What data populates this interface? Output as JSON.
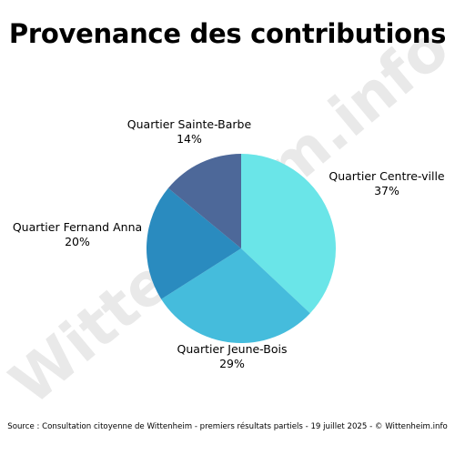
{
  "title": "Provenance des contributions",
  "watermark": "Wittenheim.info",
  "footer": "Source : Consultation citoyenne de Wittenheim - premiers résultats partiels - 19 juillet 2025 - © Wittenheim.info",
  "chart_data": {
    "type": "pie",
    "title": "Provenance des contributions",
    "slices": [
      {
        "label": "Quartier Centre-ville",
        "value": 37,
        "display": "37%",
        "color": "#6ae5e8"
      },
      {
        "label": "Quartier Jeune-Bois",
        "value": 29,
        "display": "29%",
        "color": "#45bcdc"
      },
      {
        "label": "Quartier Fernand Anna",
        "value": 20,
        "display": "20%",
        "color": "#2a8bbf"
      },
      {
        "label": "Quartier Sainte-Barbe",
        "value": 14,
        "display": "14%",
        "color": "#4d6899"
      }
    ]
  }
}
